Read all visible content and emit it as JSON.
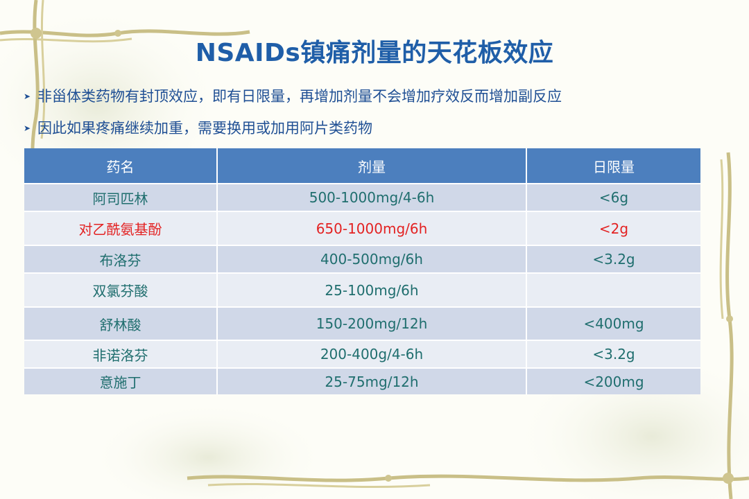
{
  "slide": {
    "title": "NSAIDs镇痛剂量的天花板效应",
    "bullets": [
      "非甾体类药物有封顶效应，即有日限量，再增加剂量不会增加疗效反而增加副反应",
      "因此如果疼痛继续加重，需要换用或加用阿片类药物"
    ],
    "bullet_icon": "arrow-bullet-icon"
  },
  "table": {
    "headers": [
      "药名",
      "剂量",
      "日限量"
    ],
    "rows": [
      [
        "阿司匹林",
        "500-1000mg/4-6h",
        "<6g"
      ],
      [
        "对乙酰氨基酚",
        "650-1000mg/6h",
        "<2g"
      ],
      [
        "布洛芬",
        "400-500mg/6h",
        "<3.2g"
      ],
      [
        "双氯芬酸",
        "25-100mg/6h",
        ""
      ],
      [
        "舒林酸",
        "150-200mg/12h",
        "<400mg"
      ],
      [
        "非诺洛芬",
        "200-400g/4-6h",
        "<3.2g"
      ],
      [
        "意施丁",
        "25-75mg/12h",
        "<200mg"
      ]
    ]
  },
  "colors": {
    "title": "#1f5ea8",
    "header_bg": "#4c7fbe",
    "row_odd": "#d0d8e8",
    "row_even": "#e9edf4",
    "text": "#1f6e6e",
    "highlight": "#e32222"
  }
}
